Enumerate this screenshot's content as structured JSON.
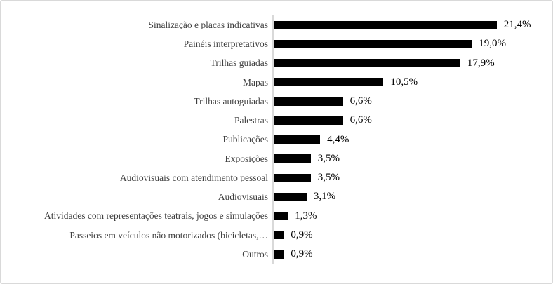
{
  "chart_data": {
    "type": "bar",
    "orientation": "horizontal",
    "title": "",
    "xlabel": "",
    "ylabel": "",
    "xlim": [
      0,
      22
    ],
    "grid": false,
    "legend": false,
    "bar_color": "#000000",
    "axis_line_color": "#d9d9d9",
    "frame_border_color": "#d9d9d9",
    "category_label_color": "#3f3f3f",
    "value_label_color": "#000000",
    "decimal_separator": ",",
    "categories": [
      "Sinalização e placas indicativas",
      "Painéis interpretativos",
      "Trilhas guiadas",
      "Mapas",
      "Trilhas autoguiadas",
      "Palestras",
      "Publicações",
      "Exposições",
      "Audiovisuais com atendimento pessoal",
      "Audiovisuais",
      "Atividades com representações teatrais, jogos e simulações",
      "Passeios em veículos não motorizados (bicicletas,…",
      "Outros"
    ],
    "values": [
      21.4,
      19.0,
      17.9,
      10.5,
      6.6,
      6.6,
      4.4,
      3.5,
      3.5,
      3.1,
      1.3,
      0.9,
      0.9
    ],
    "value_labels": [
      "21,4%",
      "19,0%",
      "17,9%",
      "10,5%",
      "6,6%",
      "6,6%",
      "4,4%",
      "3,5%",
      "3,5%",
      "3,1%",
      "1,3%",
      "0,9%",
      "0,9%"
    ]
  }
}
